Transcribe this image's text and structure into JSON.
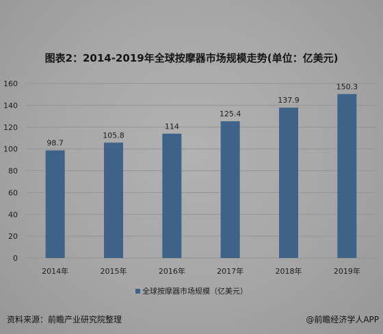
{
  "title": "图表2：2014-2019年全球按摩器市场规模走势(单位：亿美元)",
  "legend": {
    "label": "全球按摩器市场规模（亿美元）"
  },
  "footer": {
    "source": "资料来源：前瞻产业研究院整理",
    "credit": "@前瞻经济学人APP"
  },
  "colors": {
    "bar": "#3f6388",
    "gridline": "#939393"
  },
  "chart_data": {
    "type": "bar",
    "title": "图表2：2014-2019年全球按摩器市场规模走势(单位：亿美元)",
    "xlabel": "",
    "ylabel": "",
    "categories": [
      "2014年",
      "2015年",
      "2016年",
      "2017年",
      "2018年",
      "2019年"
    ],
    "series": [
      {
        "name": "全球按摩器市场规模（亿美元）",
        "values": [
          98.7,
          105.8,
          114,
          125.4,
          137.9,
          150.3
        ],
        "data_labels": [
          "98.7",
          "105.8",
          "114",
          "125.4",
          "137.9",
          "150.3"
        ]
      }
    ],
    "ylim": [
      0,
      160
    ],
    "yticks": [
      0,
      20,
      40,
      60,
      80,
      100,
      120,
      140,
      160
    ],
    "grid": true,
    "legend_position": "bottom"
  }
}
